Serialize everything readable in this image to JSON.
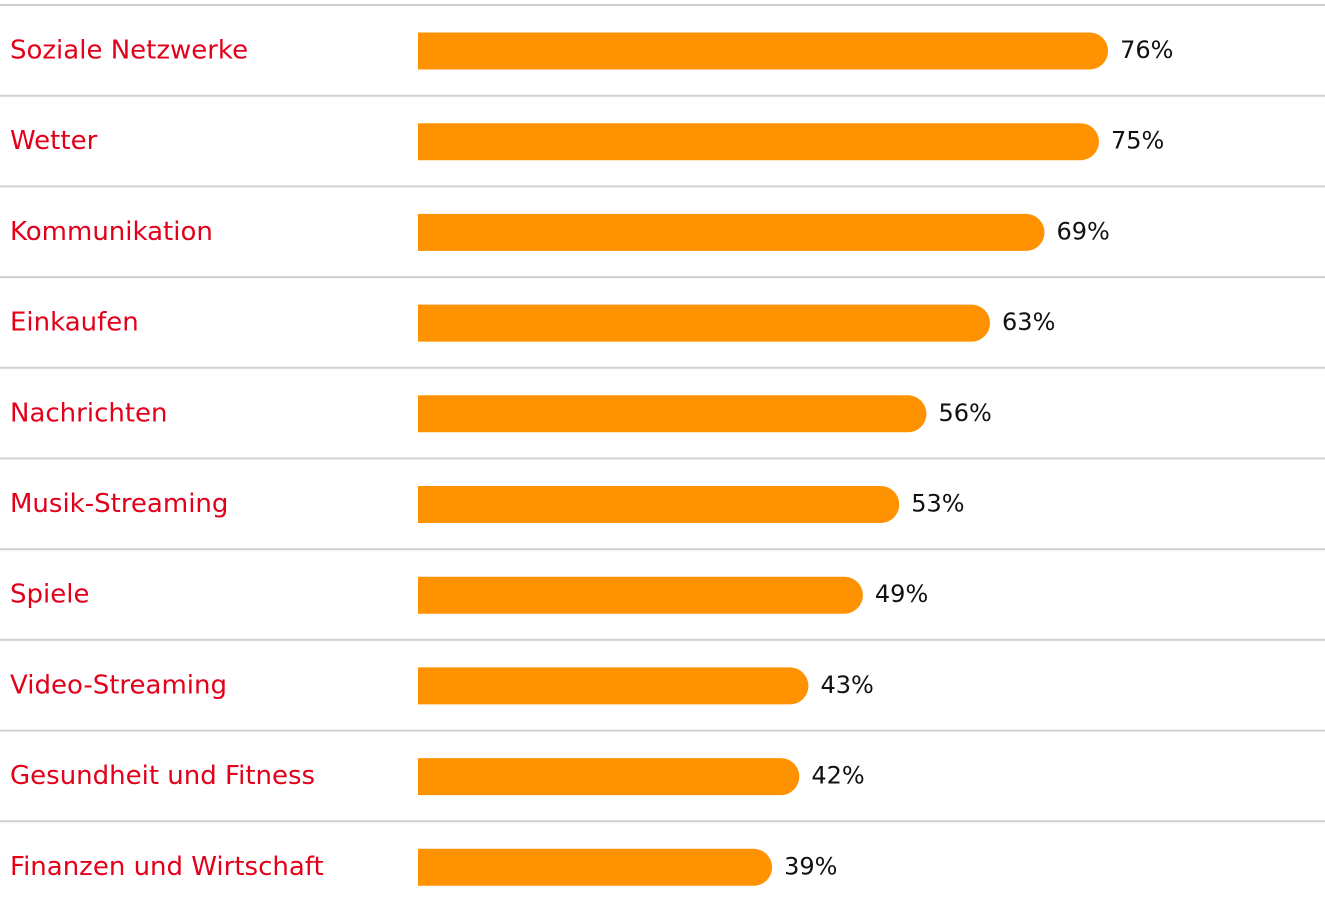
{
  "chart_data": {
    "type": "bar",
    "orientation": "horizontal",
    "color": "#ff9200",
    "categories": [
      "Soziale Netzwerke",
      "Wetter",
      "Kommunikation",
      "Einkaufen",
      "Nachrichten",
      "Musik-Streaming",
      "Spiele",
      "Video-Streaming",
      "Gesundheit und Fitness",
      "Finanzen und Wirtschaft"
    ],
    "values": [
      76,
      75,
      69,
      63,
      56,
      53,
      49,
      43,
      42,
      39
    ],
    "value_labels": [
      "76%",
      "75%",
      "69%",
      "63%",
      "56%",
      "53%",
      "49%",
      "43%",
      "42%",
      "39%"
    ]
  }
}
